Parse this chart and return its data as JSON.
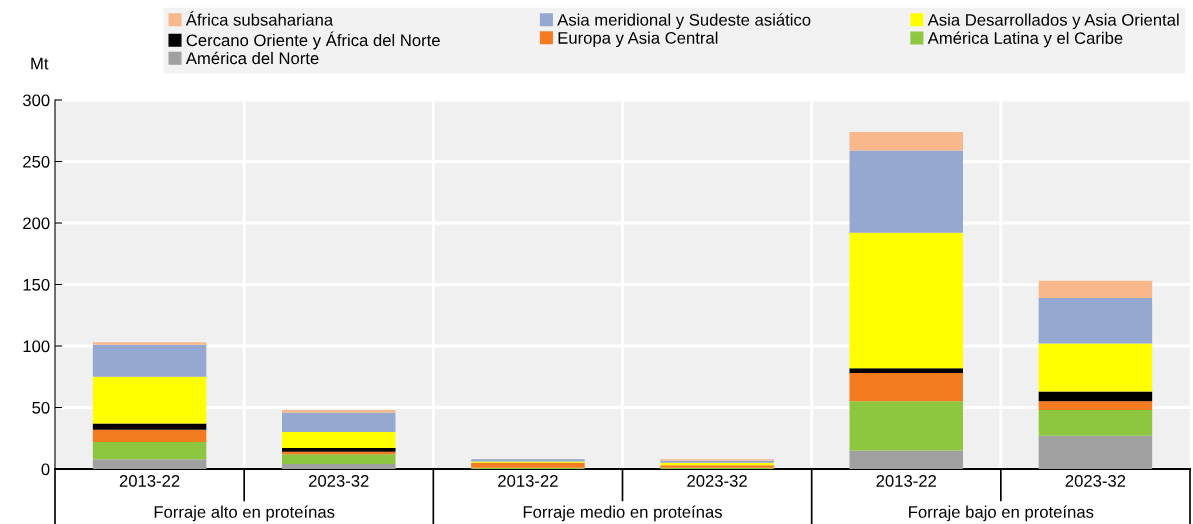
{
  "chart_data": {
    "type": "bar",
    "stacked": true,
    "ylabel": "Mt",
    "categories": [
      "2013-22",
      "2023-32",
      "2013-22",
      "2023-32",
      "2013-22",
      "2023-32"
    ],
    "series": [
      {
        "name": "América del Norte",
        "color": "#a0a0a0",
        "values": [
          8,
          4,
          0,
          0,
          15,
          27
        ]
      },
      {
        "name": "América Latina y el Caribe",
        "color": "#8dc63f",
        "values": [
          14,
          8,
          1,
          1,
          40,
          21
        ]
      },
      {
        "name": "Europa y Asia Central",
        "color": "#f47b20",
        "values": [
          10,
          2,
          4,
          2,
          23,
          7
        ]
      },
      {
        "name": "Cercano Oriente y África del Norte",
        "color": "#000000",
        "values": [
          5,
          3,
          0,
          0,
          4,
          8
        ]
      },
      {
        "name": "Asia Desarrollados y Asia Oriental",
        "color": "#ffff00",
        "values": [
          38,
          13,
          1,
          2,
          110,
          39
        ]
      },
      {
        "name": "Asia meridional y Sudeste asiático",
        "color": "#95a9d0",
        "values": [
          26,
          16,
          2,
          2,
          67,
          37
        ]
      },
      {
        "name": "África subsahariana",
        "color": "#f8b88b",
        "values": [
          2,
          2,
          0,
          1,
          15,
          14
        ]
      }
    ],
    "ylim": [
      0,
      300
    ],
    "yticks": [
      0,
      50,
      100,
      150,
      200,
      250,
      300
    ],
    "grid": true,
    "legend": "top",
    "annotations": [
      "Forraje alto en proteínas",
      "Forraje medio en proteínas",
      "Forraje bajo en proteínas"
    ]
  }
}
